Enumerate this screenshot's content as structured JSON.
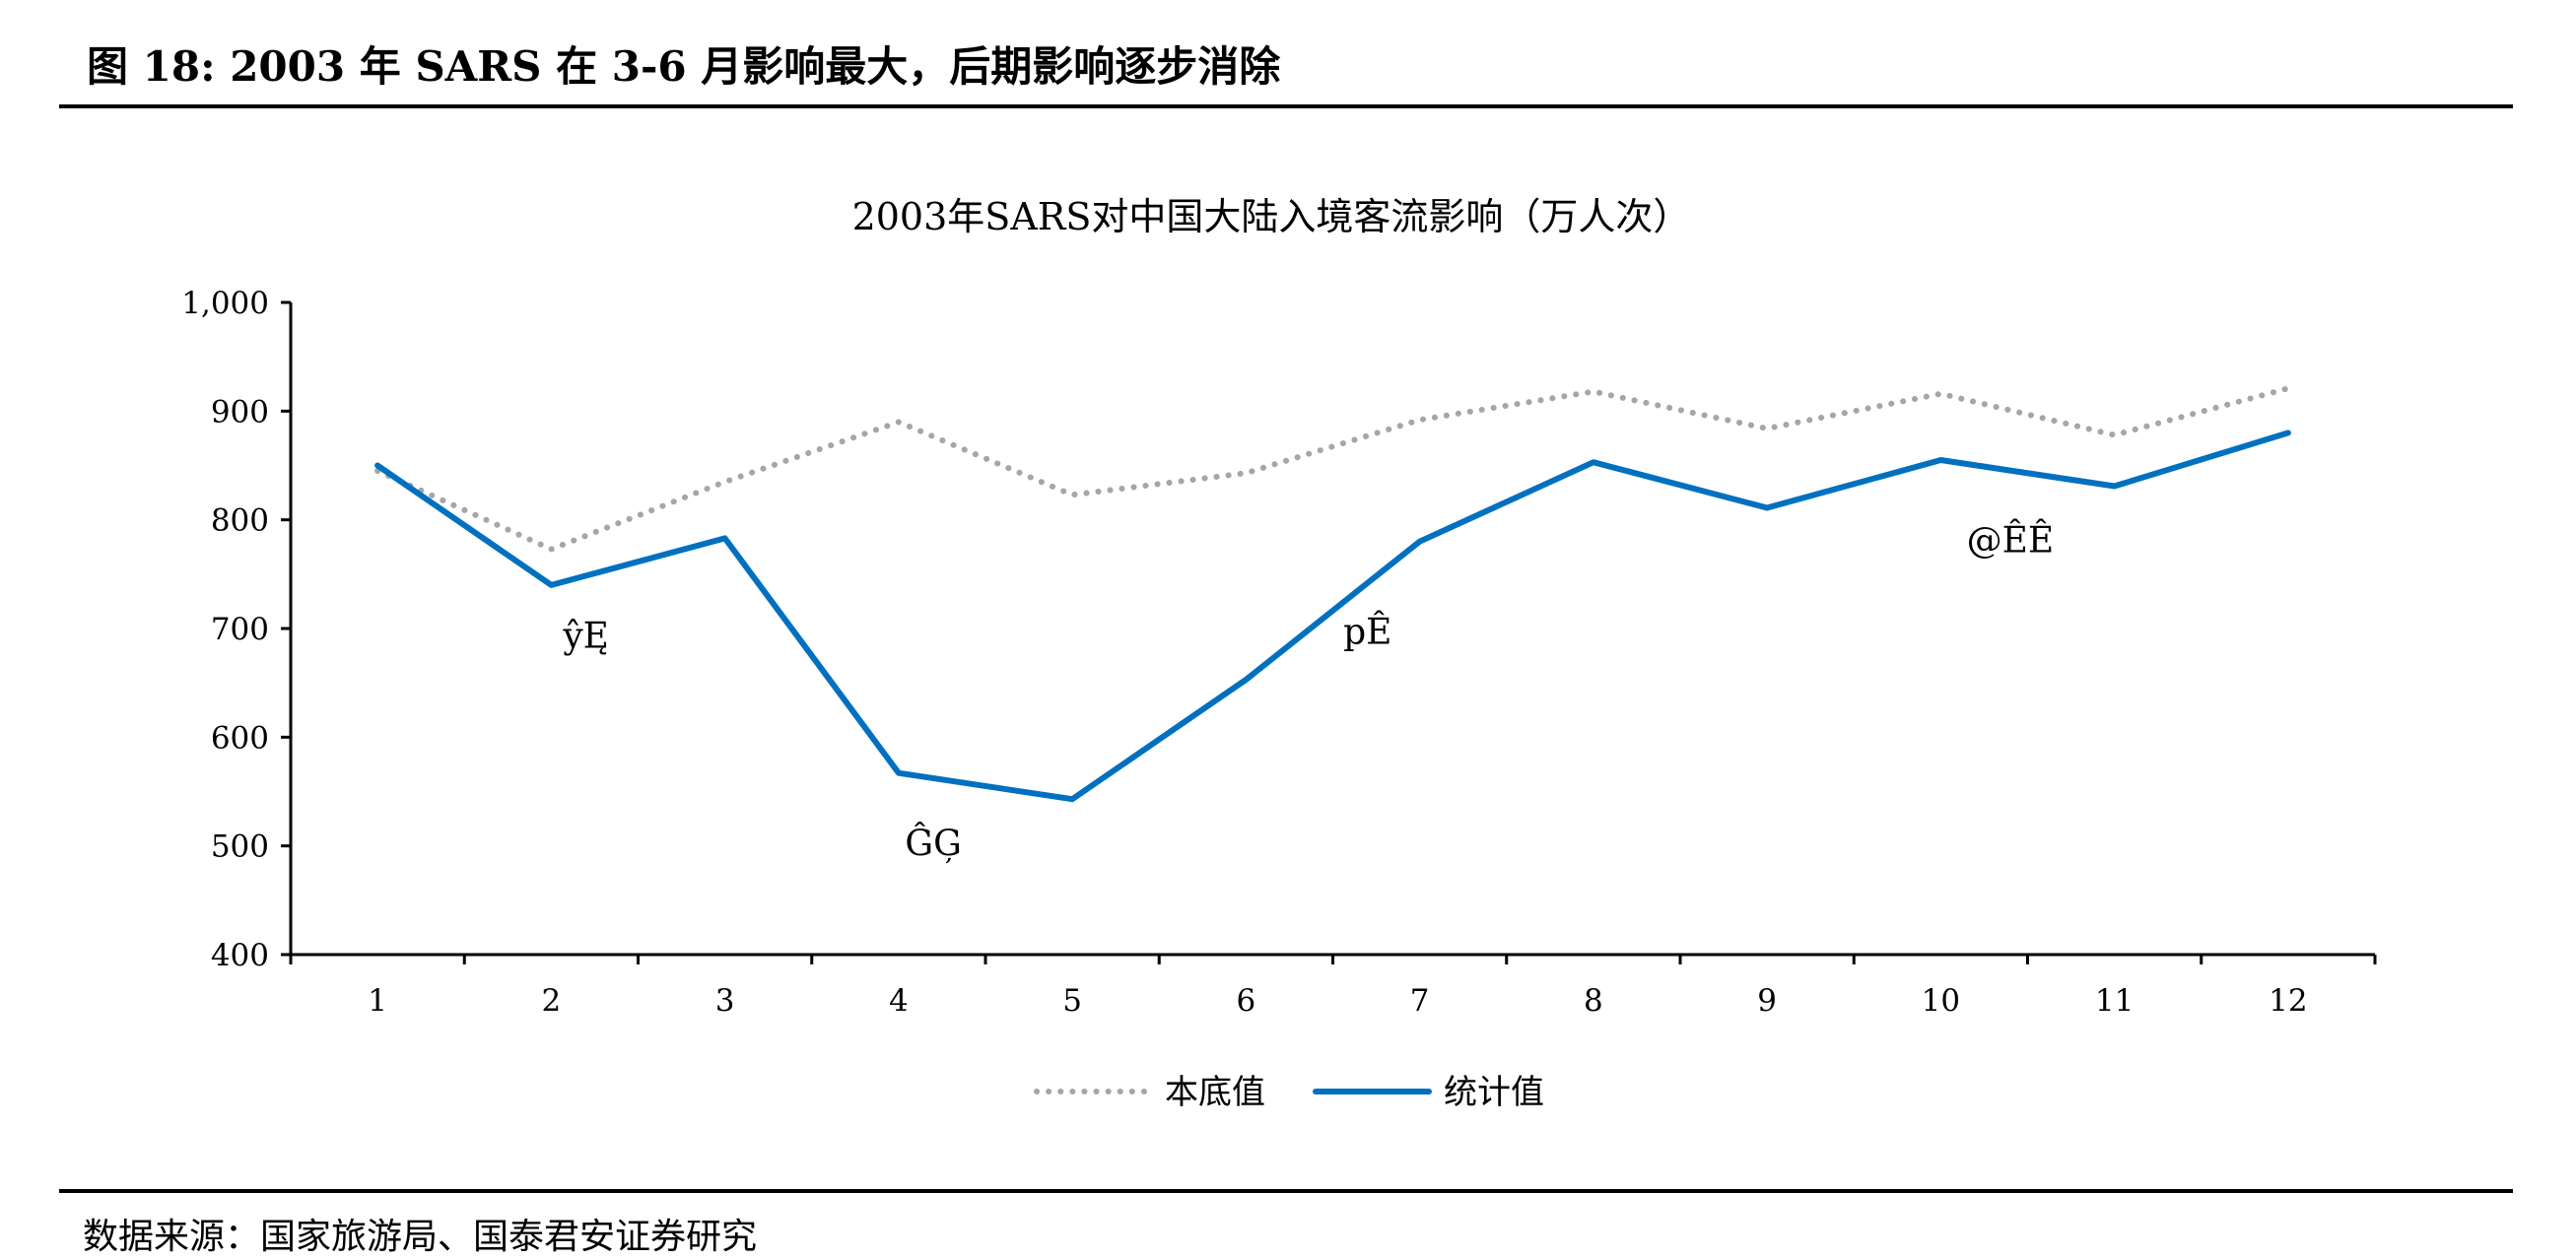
{
  "figure": {
    "title": "图 18:  2003 年 SARS 在 3-6 月影响最大，后期影响逐步消除",
    "source": "数据来源：国家旅游局、国泰君安证券研究"
  },
  "chart_data": {
    "type": "line",
    "title": "2003年SARS对中国大陆入境客流影响（万人次）",
    "x": [
      1,
      2,
      3,
      4,
      5,
      6,
      7,
      8,
      9,
      10,
      11,
      12
    ],
    "ylim": [
      400,
      1000
    ],
    "yticks": [
      400,
      500,
      600,
      700,
      800,
      900,
      1000
    ],
    "ytick_labels": [
      "400",
      "500",
      "600",
      "700",
      "800",
      "900",
      "1,000"
    ],
    "grid": false,
    "legend_position": "bottom",
    "series": [
      {
        "name": "本底值",
        "style": "dotted",
        "color": "#a6a6a6",
        "values": [
          845,
          773,
          835,
          890,
          823,
          843,
          892,
          918,
          884,
          916,
          878,
          921
        ]
      },
      {
        "name": "统计值",
        "style": "solid",
        "color": "#0070c0",
        "values": [
          850,
          740,
          783,
          567,
          543,
          653,
          780,
          853,
          811,
          855,
          831,
          880
        ]
      }
    ],
    "annotations": [
      {
        "text": "ŷĘ",
        "x": 2.2,
        "y": 693
      },
      {
        "text": "ĜĢ",
        "x": 4.2,
        "y": 502
      },
      {
        "text": "pÊ",
        "x": 6.7,
        "y": 697
      },
      {
        "text": "@ÊÊ",
        "x": 10.4,
        "y": 781
      }
    ]
  }
}
